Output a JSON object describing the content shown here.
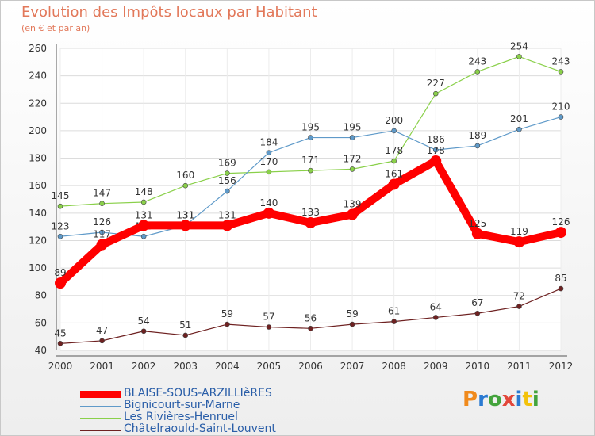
{
  "title": "Evolution des Impôts locaux par Habitant",
  "subtitle": "(en € et par an)",
  "logo": {
    "text": "Proxiti",
    "colors": [
      "#f08a1c",
      "#2a7ad2",
      "#43a33c",
      "#e2473a",
      "#2a7ad2",
      "#f3c20a",
      "#43a33c"
    ]
  },
  "chart_data": {
    "type": "line",
    "x": [
      2000,
      2001,
      2002,
      2003,
      2004,
      2005,
      2006,
      2007,
      2008,
      2009,
      2010,
      2011,
      2012
    ],
    "ylim": [
      40,
      260
    ],
    "yticks": [
      40,
      60,
      80,
      100,
      120,
      140,
      160,
      180,
      200,
      220,
      240,
      260
    ],
    "grid": true,
    "legend_position": "bottom",
    "series": [
      {
        "name": "Châtelraould-Saint-Louvent",
        "color": "#6e2121",
        "values": [
          45,
          47,
          54,
          51,
          59,
          57,
          56,
          59,
          61,
          64,
          67,
          72,
          85
        ]
      },
      {
        "name": "Les Rivières-Henruel",
        "color": "#8ad04a",
        "values": [
          145,
          147,
          148,
          160,
          169,
          170,
          171,
          172,
          178,
          227,
          243,
          254,
          243
        ]
      },
      {
        "name": "Bignicourt-sur-Marne",
        "color": "#5f9ac9",
        "values": [
          123,
          126,
          123,
          131,
          156,
          184,
          195,
          195,
          200,
          186,
          189,
          201,
          210
        ]
      },
      {
        "name": "BLAISE-SOUS-ARZILLIèRES",
        "color": "#ff0000",
        "highlight": true,
        "values": [
          89,
          117,
          131,
          131,
          131,
          140,
          133,
          139,
          161,
          178,
          125,
          119,
          126
        ]
      }
    ]
  },
  "legend_order": [
    3,
    2,
    1,
    0
  ]
}
